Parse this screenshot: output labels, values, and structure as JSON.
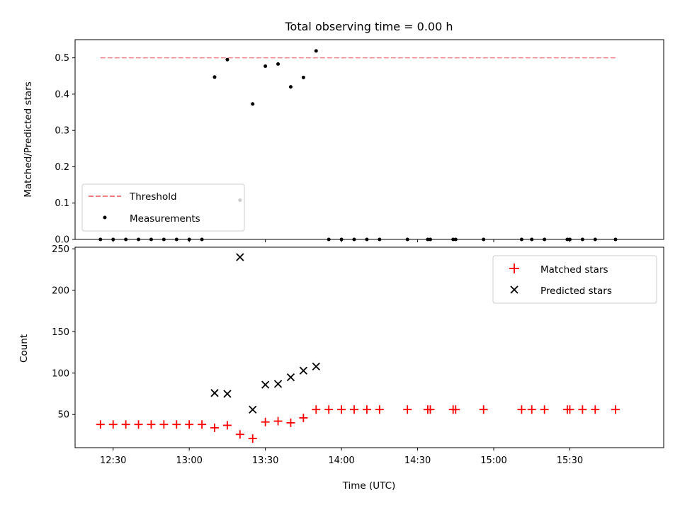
{
  "chart_data": [
    {
      "type": "scatter",
      "title": "Total observing time = 0.00 h",
      "xlabel": "",
      "ylabel": "Matched/Predicted stars",
      "xlim": [
        "12:15",
        "16:07"
      ],
      "ylim": [
        0,
        0.55
      ],
      "yticks": [
        "0.0",
        "0.1",
        "0.2",
        "0.3",
        "0.4",
        "0.5"
      ],
      "grid": false,
      "legend_position": "lower-left",
      "series": [
        {
          "name": "Threshold",
          "style": "dashed-line",
          "color": "#f08080",
          "x": [
            "12:25",
            "15:48"
          ],
          "y": [
            0.5,
            0.5
          ]
        },
        {
          "name": "Measurements",
          "style": "dot",
          "color": "#000000",
          "points": [
            [
              "12:25",
              0.0
            ],
            [
              "12:30",
              0.0
            ],
            [
              "12:35",
              0.0
            ],
            [
              "12:40",
              0.0
            ],
            [
              "12:45",
              0.0
            ],
            [
              "12:50",
              0.0
            ],
            [
              "12:55",
              0.0
            ],
            [
              "13:00",
              0.0
            ],
            [
              "13:05",
              0.0
            ],
            [
              "13:10",
              0.447
            ],
            [
              "13:15",
              0.495
            ],
            [
              "13:20",
              0.108
            ],
            [
              "13:25",
              0.373
            ],
            [
              "13:30",
              0.477
            ],
            [
              "13:35",
              0.483
            ],
            [
              "13:40",
              0.42
            ],
            [
              "13:45",
              0.446
            ],
            [
              "13:50",
              0.519
            ],
            [
              "13:55",
              0.0
            ],
            [
              "14:00",
              0.0
            ],
            [
              "14:05",
              0.0
            ],
            [
              "14:10",
              0.0
            ],
            [
              "14:15",
              0.0
            ],
            [
              "14:26",
              0.0
            ],
            [
              "14:34",
              0.0
            ],
            [
              "14:35",
              0.0
            ],
            [
              "14:44",
              0.0
            ],
            [
              "14:45",
              0.0
            ],
            [
              "14:56",
              0.0
            ],
            [
              "15:11",
              0.0
            ],
            [
              "15:15",
              0.0
            ],
            [
              "15:20",
              0.0
            ],
            [
              "15:29",
              0.0
            ],
            [
              "15:30",
              0.0
            ],
            [
              "15:35",
              0.0
            ],
            [
              "15:40",
              0.0
            ],
            [
              "15:48",
              0.0
            ]
          ]
        }
      ]
    },
    {
      "type": "scatter",
      "title": "",
      "xlabel": "Time (UTC)",
      "ylabel": "Count",
      "xlim": [
        "12:15",
        "16:07"
      ],
      "ylim": [
        10,
        252
      ],
      "xticks": [
        "12:30",
        "13:00",
        "13:30",
        "14:00",
        "14:30",
        "15:00",
        "15:30"
      ],
      "yticks": [
        "50",
        "100",
        "150",
        "200",
        "250"
      ],
      "grid": false,
      "legend_position": "top-right",
      "series": [
        {
          "name": "Matched stars",
          "marker": "+",
          "color": "#ff0000",
          "points": [
            [
              "12:25",
              38
            ],
            [
              "12:30",
              38
            ],
            [
              "12:35",
              38
            ],
            [
              "12:40",
              38
            ],
            [
              "12:45",
              38
            ],
            [
              "12:50",
              38
            ],
            [
              "12:55",
              38
            ],
            [
              "13:00",
              38
            ],
            [
              "13:05",
              38
            ],
            [
              "13:10",
              34
            ],
            [
              "13:15",
              37
            ],
            [
              "13:20",
              26
            ],
            [
              "13:25",
              21
            ],
            [
              "13:30",
              41
            ],
            [
              "13:35",
              42
            ],
            [
              "13:40",
              40
            ],
            [
              "13:45",
              46
            ],
            [
              "13:50",
              56
            ],
            [
              "13:55",
              56
            ],
            [
              "14:00",
              56
            ],
            [
              "14:05",
              56
            ],
            [
              "14:10",
              56
            ],
            [
              "14:15",
              56
            ],
            [
              "14:26",
              56
            ],
            [
              "14:34",
              56
            ],
            [
              "14:35",
              56
            ],
            [
              "14:44",
              56
            ],
            [
              "14:45",
              56
            ],
            [
              "14:56",
              56
            ],
            [
              "15:11",
              56
            ],
            [
              "15:15",
              56
            ],
            [
              "15:20",
              56
            ],
            [
              "15:29",
              56
            ],
            [
              "15:30",
              56
            ],
            [
              "15:35",
              56
            ],
            [
              "15:40",
              56
            ],
            [
              "15:48",
              56
            ]
          ]
        },
        {
          "name": "Predicted stars",
          "marker": "x",
          "color": "#000000",
          "points": [
            [
              "13:10",
              76
            ],
            [
              "13:15",
              75
            ],
            [
              "13:20",
              240
            ],
            [
              "13:25",
              56
            ],
            [
              "13:30",
              86
            ],
            [
              "13:35",
              87
            ],
            [
              "13:40",
              95
            ],
            [
              "13:45",
              103
            ],
            [
              "13:50",
              108
            ]
          ]
        }
      ]
    }
  ]
}
